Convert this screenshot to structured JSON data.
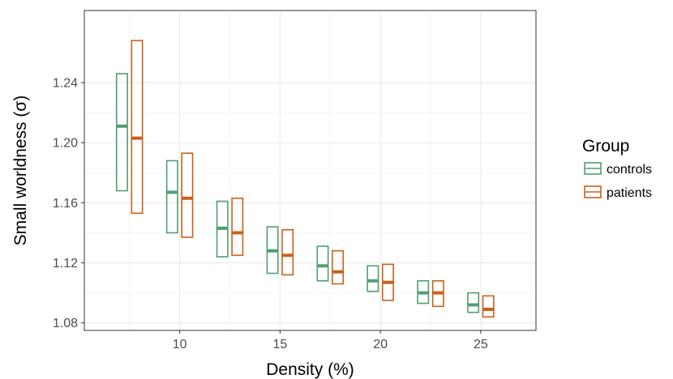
{
  "chart_data": {
    "type": "crossbar",
    "xlabel": "Density (%)",
    "ylabel": "Small worldness (σ)",
    "x_ticks": [
      10,
      15,
      20,
      25
    ],
    "x_tick_labels": [
      "10",
      "15",
      "20",
      "25"
    ],
    "y_ticks": [
      1.08,
      1.12,
      1.16,
      1.2,
      1.24
    ],
    "y_tick_labels": [
      "1.08",
      "1.12",
      "1.16",
      "1.20",
      "1.24"
    ],
    "xlim": [
      5.25,
      27.75
    ],
    "ylim": [
      1.075,
      1.288
    ],
    "grid": true,
    "legend": {
      "title": "Group",
      "placement": "right",
      "entries": [
        "controls",
        "patients"
      ]
    },
    "series": [
      {
        "name": "controls",
        "color": "#4f9f73",
        "x": [
          7.5,
          10,
          12.5,
          15,
          17.5,
          20,
          22.5,
          25
        ],
        "median": [
          1.211,
          1.167,
          1.143,
          1.128,
          1.118,
          1.108,
          1.1,
          1.092
        ],
        "lower": [
          1.168,
          1.14,
          1.124,
          1.113,
          1.108,
          1.101,
          1.093,
          1.087
        ],
        "upper": [
          1.246,
          1.188,
          1.161,
          1.144,
          1.131,
          1.118,
          1.108,
          1.1
        ]
      },
      {
        "name": "patients",
        "color": "#c9621a",
        "x": [
          7.5,
          10,
          12.5,
          15,
          17.5,
          20,
          22.5,
          25
        ],
        "median": [
          1.203,
          1.163,
          1.14,
          1.125,
          1.114,
          1.107,
          1.1,
          1.089
        ],
        "lower": [
          1.153,
          1.137,
          1.125,
          1.112,
          1.106,
          1.095,
          1.091,
          1.084
        ],
        "upper": [
          1.268,
          1.193,
          1.163,
          1.142,
          1.128,
          1.119,
          1.108,
          1.098
        ]
      }
    ]
  }
}
